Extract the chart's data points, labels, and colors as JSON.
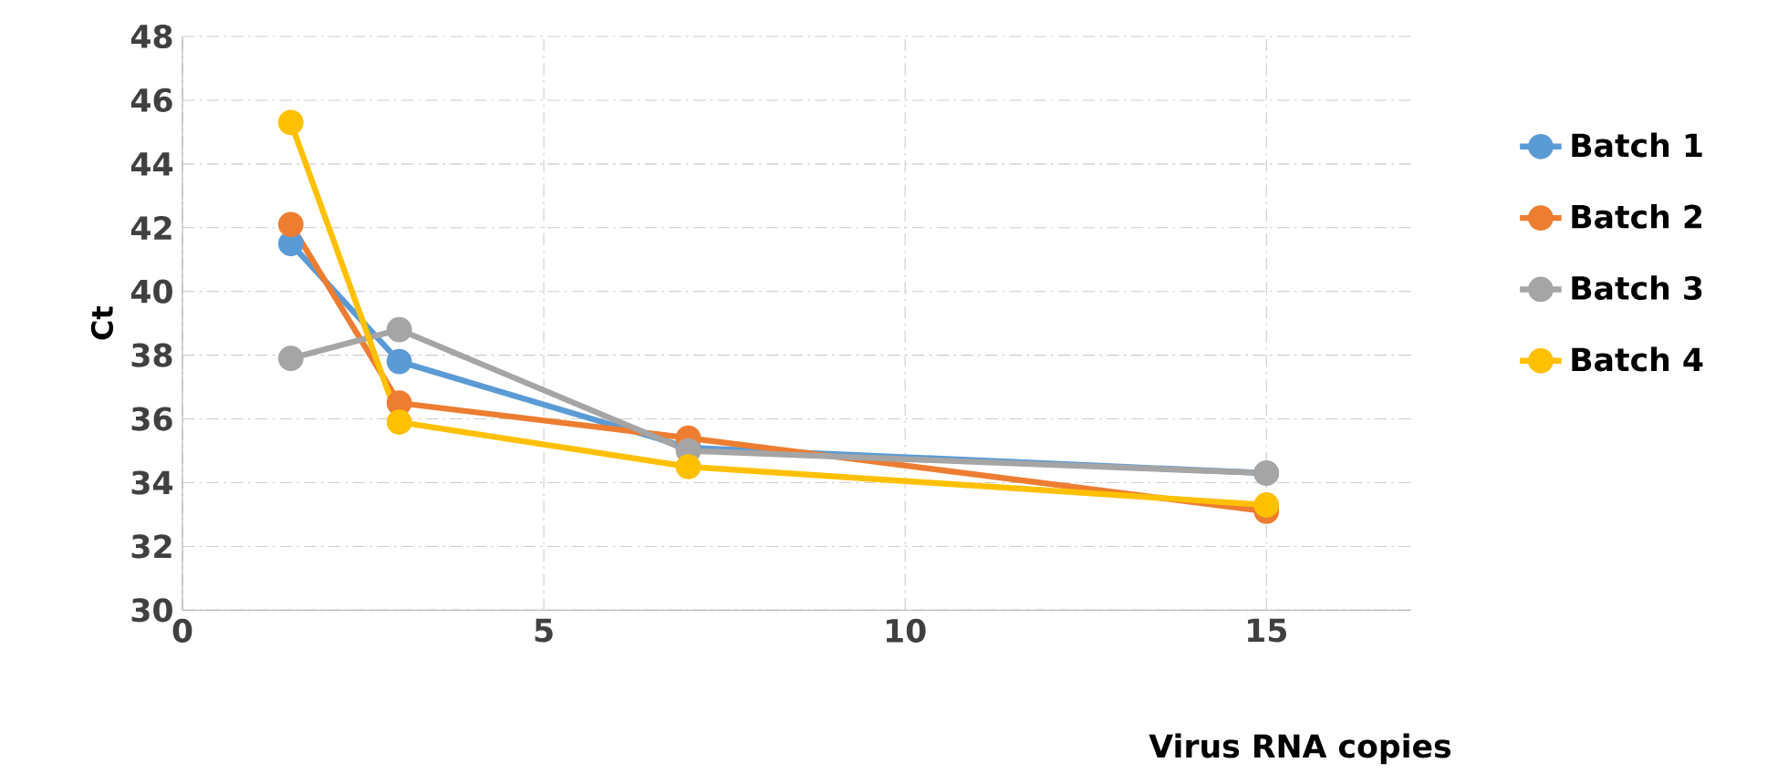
{
  "chart_data": {
    "type": "line",
    "xlabel": "Virus RNA copies",
    "ylabel": "Ct",
    "x": [
      1.5,
      3,
      7,
      15
    ],
    "series": [
      {
        "name": "Batch 1",
        "color": "#5b9bd5",
        "values": [
          41.5,
          37.8,
          35.1,
          34.3
        ]
      },
      {
        "name": "Batch 2",
        "color": "#ed7d31",
        "values": [
          42.1,
          36.5,
          35.4,
          33.1
        ]
      },
      {
        "name": "Batch 3",
        "color": "#a5a5a5",
        "values": [
          37.9,
          38.8,
          35.0,
          34.3
        ]
      },
      {
        "name": "Batch 4",
        "color": "#ffc000",
        "values": [
          45.3,
          35.9,
          34.5,
          33.3
        ]
      }
    ],
    "xlim": [
      0,
      17
    ],
    "ylim": [
      30,
      48
    ],
    "xticks": [
      0,
      5,
      10,
      15
    ],
    "yticks": [
      30,
      32,
      34,
      36,
      38,
      40,
      42,
      44,
      46,
      48
    ],
    "grid": true,
    "legend": "right",
    "marker": "circle",
    "line_style": "solid"
  }
}
